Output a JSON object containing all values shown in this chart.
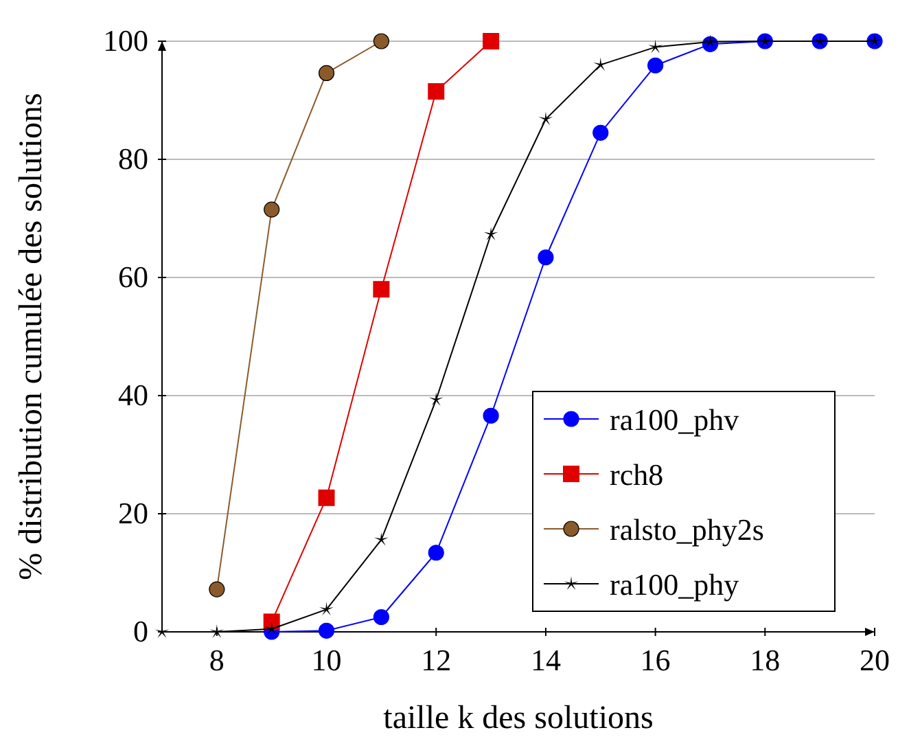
{
  "chart_data": {
    "type": "line",
    "xlabel": "taille k des solutions",
    "ylabel": "% distribution cumulée des solutions",
    "xlim": [
      7,
      20
    ],
    "xticks": [
      8,
      10,
      12,
      14,
      16,
      18,
      20
    ],
    "ylim": [
      0,
      100
    ],
    "yticks": [
      0,
      20,
      40,
      60,
      80,
      100
    ],
    "grid": "y",
    "legend": "bottom right",
    "series": [
      {
        "name": "ra100_phv",
        "color": "#0000ff",
        "marker": "circle",
        "x": [
          9,
          10,
          11,
          12,
          13,
          14,
          15,
          16,
          17,
          18,
          19,
          20
        ],
        "values": [
          0,
          0.2,
          2.5,
          13.4,
          36.6,
          63.4,
          84.5,
          95.9,
          99.5,
          100,
          100,
          100
        ]
      },
      {
        "name": "rch8",
        "color": "#e00000",
        "marker": "square",
        "x": [
          9,
          10,
          11,
          12,
          13
        ],
        "values": [
          1.7,
          22.7,
          58,
          91.5,
          100
        ]
      },
      {
        "name": "ralsto_phy2s",
        "color": "#8b5a2b",
        "marker": "circle",
        "x": [
          8,
          9,
          10,
          11
        ],
        "values": [
          7.2,
          71.5,
          94.6,
          100
        ]
      },
      {
        "name": "ra100_phy",
        "color": "#000000",
        "marker": "star",
        "x": [
          7,
          8,
          9,
          10,
          11,
          12,
          13,
          14,
          15,
          16,
          17,
          18,
          19,
          20
        ],
        "values": [
          0,
          0,
          0.5,
          3.8,
          15.6,
          39.3,
          67.3,
          86.8,
          96,
          99,
          99.9,
          100,
          100,
          100
        ]
      }
    ]
  }
}
